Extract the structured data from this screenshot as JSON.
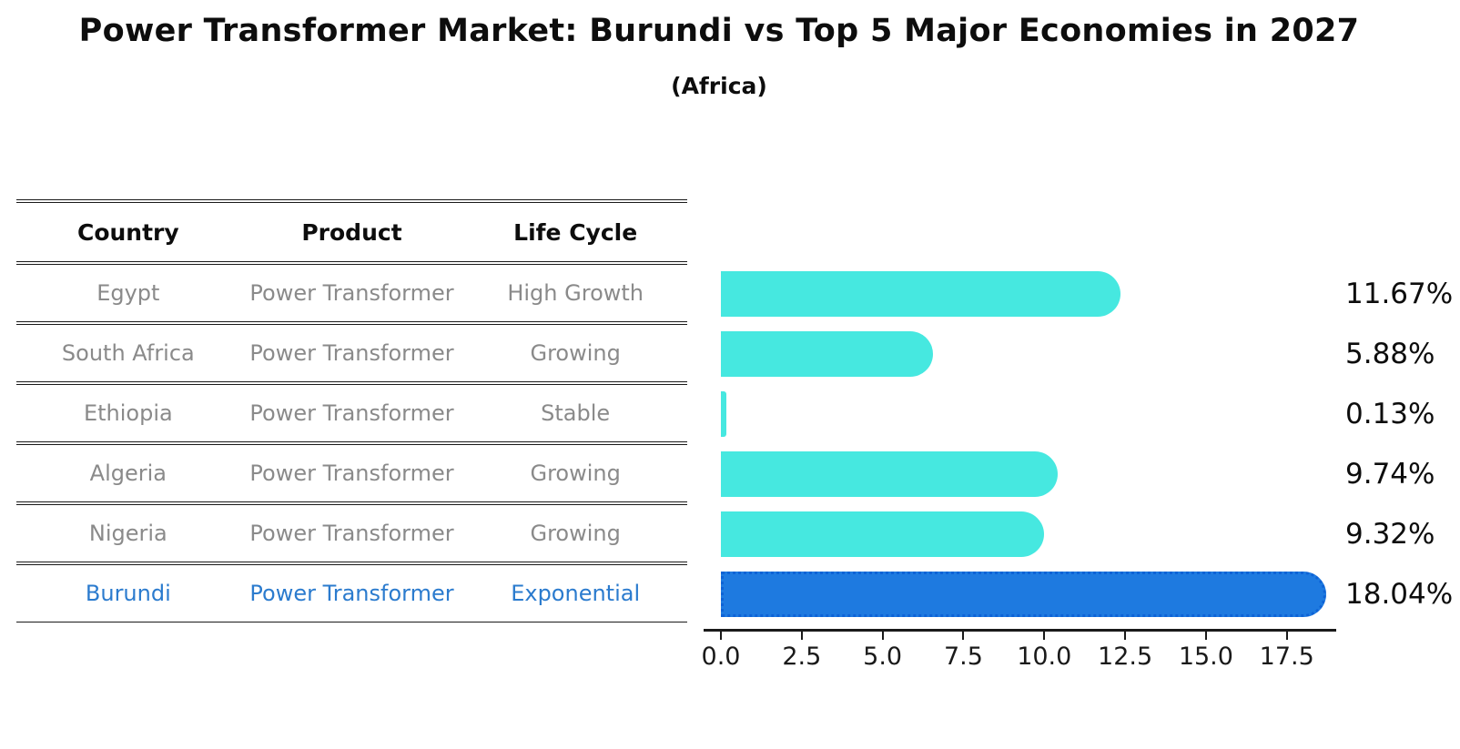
{
  "header": {
    "title": "Power Transformer Market: Burundi vs Top 5 Major Economies in 2027",
    "subtitle": "(Africa)"
  },
  "table": {
    "columns": [
      "Country",
      "Product",
      "Life Cycle"
    ],
    "rows": [
      {
        "country": "Egypt",
        "product": "Power Transformer",
        "life_cycle": "High Growth",
        "highlight": false
      },
      {
        "country": "South Africa",
        "product": "Power Transformer",
        "life_cycle": "Growing",
        "highlight": false
      },
      {
        "country": "Ethiopia",
        "product": "Power Transformer",
        "life_cycle": "Stable",
        "highlight": false
      },
      {
        "country": "Algeria",
        "product": "Power Transformer",
        "life_cycle": "Growing",
        "highlight": false
      },
      {
        "country": "Nigeria",
        "product": "Power Transformer",
        "life_cycle": "Growing",
        "highlight": false
      },
      {
        "country": "Burundi",
        "product": "Power Transformer",
        "life_cycle": "Exponential",
        "highlight": true
      }
    ]
  },
  "chart_data": {
    "type": "bar",
    "orientation": "horizontal",
    "title": "Power Transformer Market: Burundi vs Top 5 Major Economies in 2027",
    "subtitle": "(Africa)",
    "categories": [
      "Egypt",
      "South Africa",
      "Ethiopia",
      "Algeria",
      "Nigeria",
      "Burundi"
    ],
    "values": [
      11.67,
      5.88,
      0.13,
      9.74,
      9.32,
      18.04
    ],
    "labels": [
      "11.67%",
      "5.88%",
      "0.13%",
      "9.74%",
      "9.32%",
      "18.04%"
    ],
    "xlim": [
      0,
      19
    ],
    "ticks": [
      0,
      2.5,
      5,
      7.5,
      10,
      12.5,
      15,
      17.5
    ],
    "tick_labels": [
      "0.0",
      "2.5",
      "5.0",
      "7.5",
      "10.0",
      "12.5",
      "15.0",
      "17.5"
    ],
    "grid": false,
    "legend": false,
    "highlight_index": 5
  },
  "colors": {
    "bar": "#46e8e0",
    "highlight_bar": "#1e7ae0",
    "highlight_bar_border": "#0e63d6",
    "highlight_text": "#2b7bce",
    "row_text": "#8a8a8a",
    "axis": "#1a1a1a"
  }
}
